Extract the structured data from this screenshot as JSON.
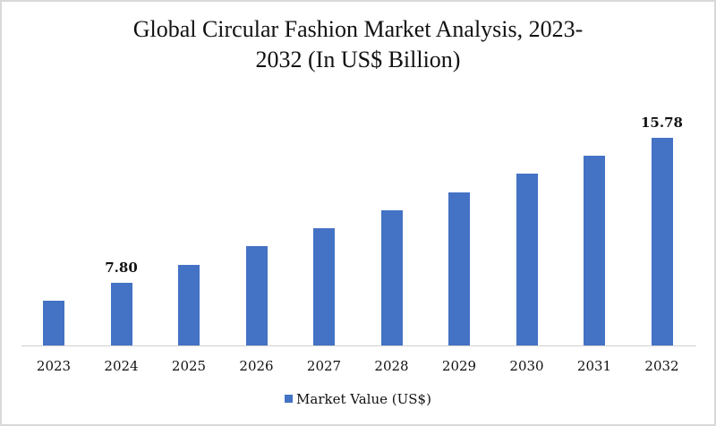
{
  "chart_data": {
    "type": "bar",
    "title": "Global Circular Fashion Market Analysis, 2023-2032 (In US$ Billion)",
    "title_lines": [
      "Global Circular Fashion Market Analysis, 2023-",
      "2032 (In US$ Billion)"
    ],
    "xlabel": "",
    "ylabel": "",
    "categories": [
      "2023",
      "2024",
      "2025",
      "2026",
      "2027",
      "2028",
      "2029",
      "2030",
      "2031",
      "2032"
    ],
    "series": [
      {
        "name": "Market Value (US$)",
        "color": "#4472c4",
        "values": [
          6.8,
          7.8,
          8.8,
          9.8,
          10.79,
          11.79,
          12.79,
          13.79,
          14.78,
          15.78
        ]
      }
    ],
    "data_labels": [
      {
        "category": "2024",
        "text": "7.80"
      },
      {
        "category": "2032",
        "text": "15.78"
      }
    ],
    "grid": false,
    "y_axis_visible": false,
    "legend_position": "bottom"
  },
  "legend": {
    "label": "Market Value (US$)"
  }
}
